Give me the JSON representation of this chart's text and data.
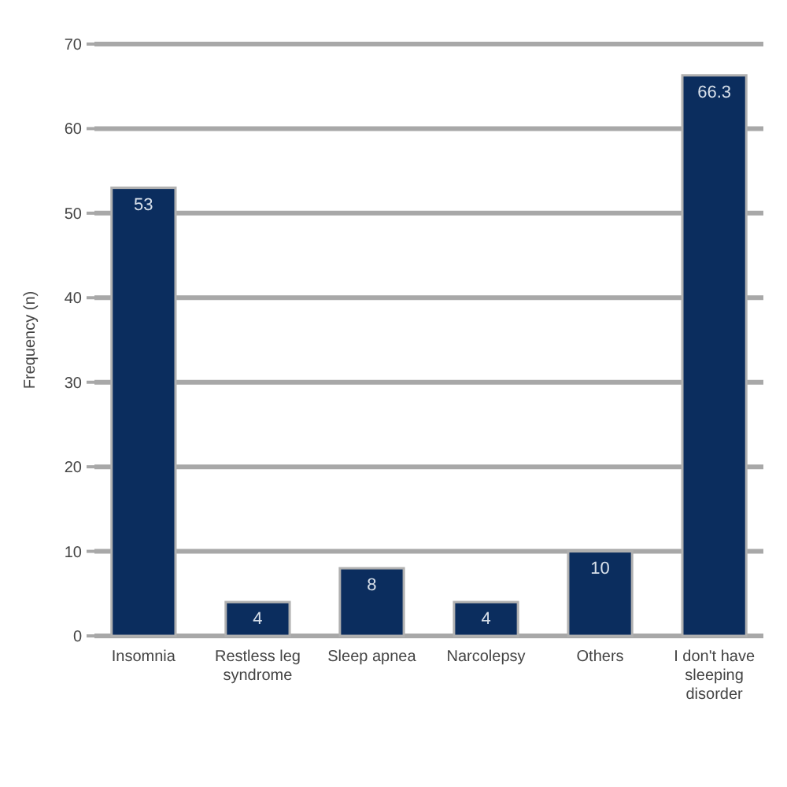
{
  "chart_data": {
    "type": "bar",
    "ylabel": "Frequency (n)",
    "categories": [
      "Insomnia",
      "Restless leg syndrome",
      "Sleep apnea",
      "Narcolepsy",
      "Others",
      "I don't have sleeping disorder"
    ],
    "values": [
      53,
      4,
      8,
      4,
      10,
      66.3
    ],
    "color": "#0b2d5e",
    "ylim": [
      0,
      70
    ],
    "yticks": [
      0,
      10,
      20,
      30,
      40,
      50,
      60,
      70
    ],
    "grid": "y",
    "data_labels": true
  }
}
